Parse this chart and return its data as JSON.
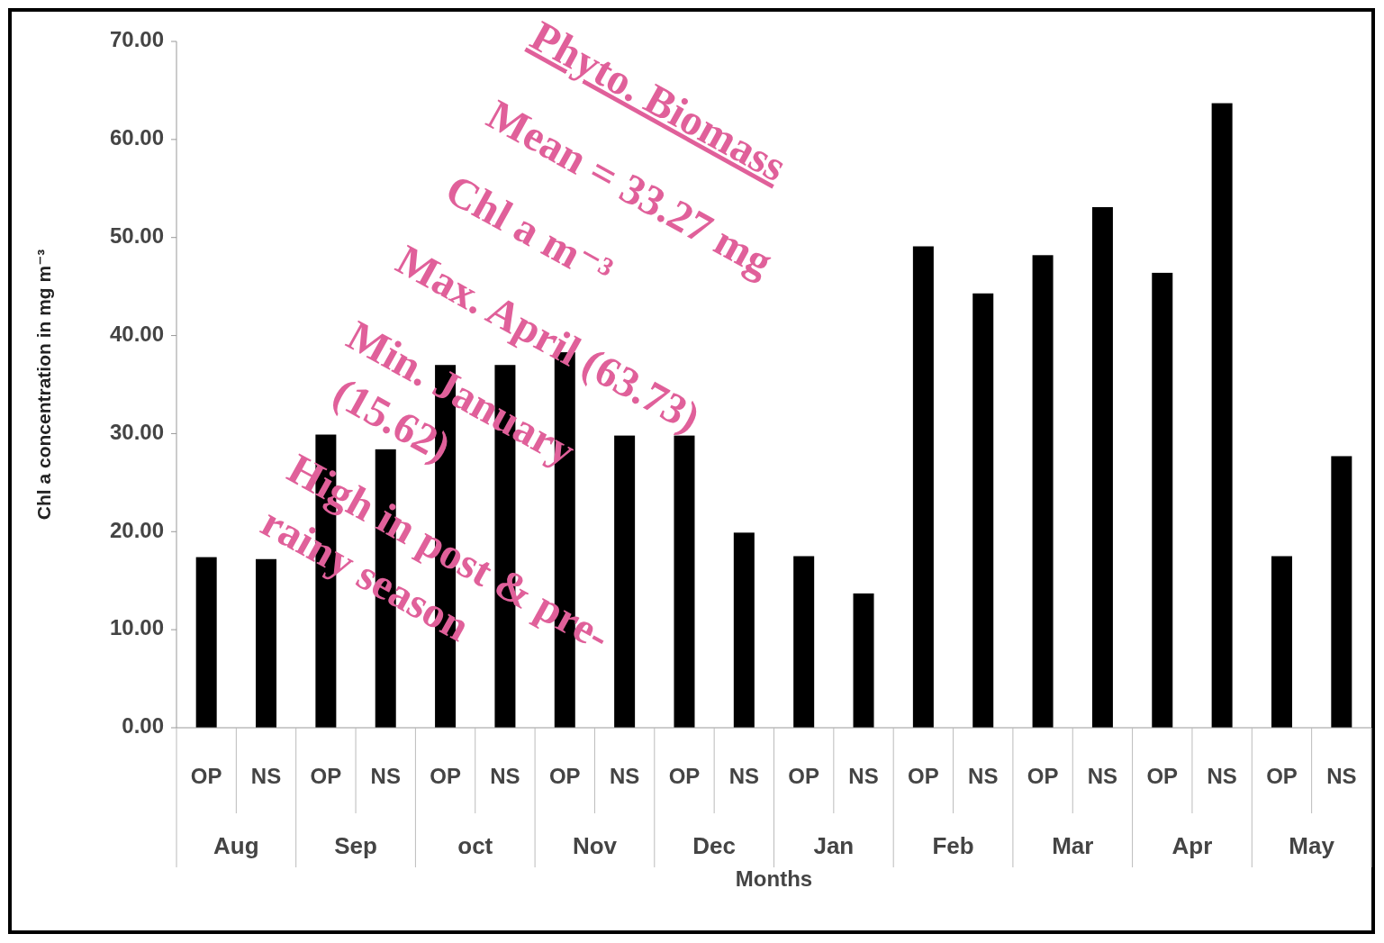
{
  "chart_data": {
    "type": "bar",
    "categories": [
      "OP",
      "NS",
      "OP",
      "NS",
      "OP",
      "NS",
      "OP",
      "NS",
      "OP",
      "NS",
      "OP",
      "NS",
      "OP",
      "NS",
      "OP",
      "NS",
      "OP",
      "NS",
      "OP",
      "NS"
    ],
    "values": [
      17.4,
      17.2,
      29.9,
      28.4,
      37.0,
      37.0,
      38.3,
      29.8,
      29.8,
      19.9,
      17.5,
      13.7,
      49.1,
      44.3,
      48.2,
      53.1,
      46.4,
      63.7,
      17.5,
      27.7
    ],
    "color": "#000000",
    "xlabel": "Months",
    "ylabel": "Chl a concentration in mg m⁻³",
    "ylim": [
      0,
      70
    ],
    "yticks": [
      {
        "value": 0,
        "label": "0.00"
      },
      {
        "value": 10,
        "label": "10.00"
      },
      {
        "value": 20,
        "label": "20.00"
      },
      {
        "value": 30,
        "label": "30.00"
      },
      {
        "value": 40,
        "label": "40.00"
      },
      {
        "value": 50,
        "label": "50.00"
      },
      {
        "value": 60,
        "label": "60.00"
      },
      {
        "value": 70,
        "label": "70.00"
      }
    ],
    "annotations": [
      "Phyto. Biomass\nMean = 33.27 mg\nChl a m⁻³\nMax. April (63.73)\nMin. January\n(15.62)\nHigh in post & pre-\nrainy season",
      "Aug",
      "Sep",
      "oct",
      "Nov",
      "Dec",
      "Jan",
      "Feb",
      "Mar",
      "Apr",
      "May"
    ]
  }
}
